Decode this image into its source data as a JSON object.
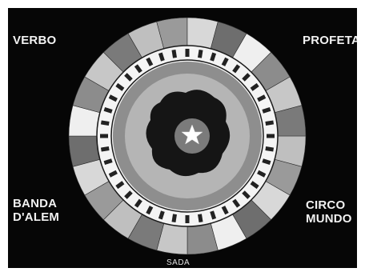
{
  "screen": {
    "background": "#060606",
    "ring_colors": [
      "#bfbfbf",
      "#9a9a9a",
      "#d8d8d8",
      "#6e6e6e",
      "#efefef",
      "#8c8c8c",
      "#c7c7c7",
      "#7a7a7a"
    ]
  },
  "labels": {
    "top_left": "VERBO",
    "top_right": "PROFETA",
    "bottom_left_line1": "BANDA",
    "bottom_left_line2": "D'ALEM",
    "bottom_right_line1": "CIRCO",
    "bottom_right_line2": "MUNDO",
    "bottom": "SADA"
  },
  "center": {
    "star_icon": "star-icon"
  }
}
